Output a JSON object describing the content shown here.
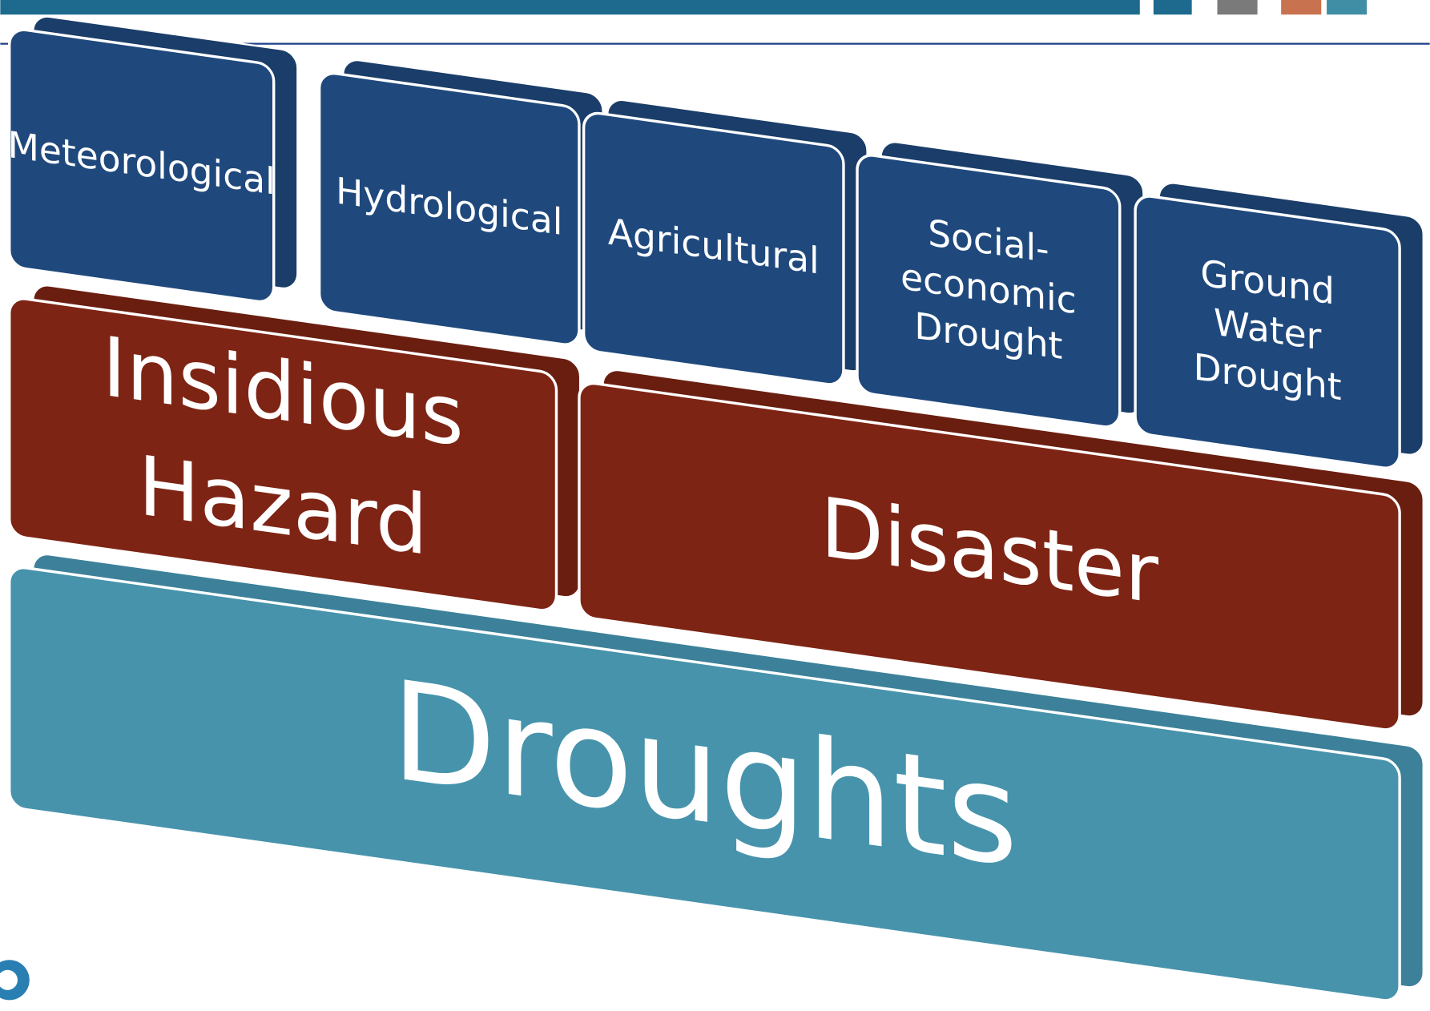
{
  "blocks": [
    {
      "lines": [
        "Droughts"
      ],
      "kind": "base"
    },
    {
      "lines": [
        "Insidious",
        "Hazard"
      ],
      "kind": "middle"
    },
    {
      "lines": [
        "Disaster"
      ],
      "kind": "middle"
    },
    {
      "lines": [
        "Meteorological"
      ],
      "kind": "top"
    },
    {
      "lines": [
        "Hydrological"
      ],
      "kind": "top"
    },
    {
      "lines": [
        "Agricultural"
      ],
      "kind": "top"
    },
    {
      "lines": [
        "Social-",
        "economic",
        "Drought"
      ],
      "kind": "top"
    },
    {
      "lines": [
        "Ground",
        "Water",
        "Drought"
      ],
      "kind": "top"
    }
  ]
}
